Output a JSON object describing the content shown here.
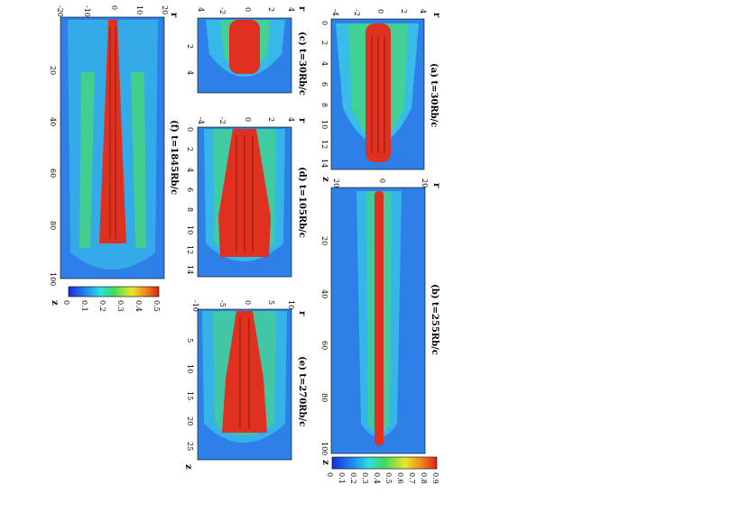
{
  "figure": {
    "panels": [
      {
        "id": "a",
        "title": "(a) t=30Rb/c",
        "z_label": "z",
        "r_label": "r",
        "z_ticks": [
          "0",
          "2",
          "4",
          "6",
          "8",
          "10",
          "12",
          "14"
        ],
        "r_ticks": [
          "-4",
          "-2",
          "0",
          "2",
          "4"
        ]
      },
      {
        "id": "b",
        "title": "(b) t=255Rb/c",
        "z_label": "z",
        "r_label": "r",
        "z_ticks": [
          "0",
          "20",
          "40",
          "60",
          "80",
          "100"
        ],
        "r_ticks": [
          "20",
          "0",
          "20"
        ]
      },
      {
        "id": "c",
        "title": "(c) t=30Rb/c",
        "z_label": "z",
        "r_label": "r",
        "z_ticks": [
          "0",
          "2",
          "4"
        ],
        "r_ticks": [
          "4",
          "-2",
          "0",
          "2",
          "4"
        ]
      },
      {
        "id": "d",
        "title": "(d) t=105Rb/c",
        "z_label": "z",
        "r_label": "r",
        "z_ticks": [
          "0",
          "2",
          "4",
          "6",
          "8",
          "10",
          "12",
          "14"
        ],
        "r_ticks": [
          "-4",
          "-2",
          "0",
          "2",
          "4"
        ]
      },
      {
        "id": "e",
        "title": "(e) t=270Rb/c",
        "z_label": "z",
        "r_label": "r",
        "z_ticks": [
          "0",
          "5",
          "10",
          "15",
          "20",
          "25"
        ],
        "r_ticks": [
          "-10",
          "-5",
          "0",
          "5",
          "10"
        ]
      },
      {
        "id": "f",
        "title": "(f) t=1845Rb/c",
        "z_label": "z",
        "r_label": "r",
        "z_ticks": [
          "0",
          "20",
          "40",
          "60",
          "80",
          "100"
        ],
        "r_ticks": [
          "-20",
          "-10",
          "0",
          "10",
          "20"
        ]
      }
    ],
    "colorbar_large": {
      "ticks": [
        "0",
        "0.1",
        "0.2",
        "0.3",
        "0.4",
        "0.5",
        "0.6",
        "0.7",
        "0.8",
        "0.9"
      ]
    },
    "colorbar_small": {
      "ticks": [
        "0",
        "0.1",
        "0.2",
        "0.3",
        "0.4",
        "0.5"
      ]
    },
    "colors": {
      "background": "#1f4fd6",
      "outer": "#2a8cf0",
      "cyan": "#33d6e6",
      "green": "#40d060",
      "yellow": "#f0e030",
      "red": "#e03020"
    }
  }
}
